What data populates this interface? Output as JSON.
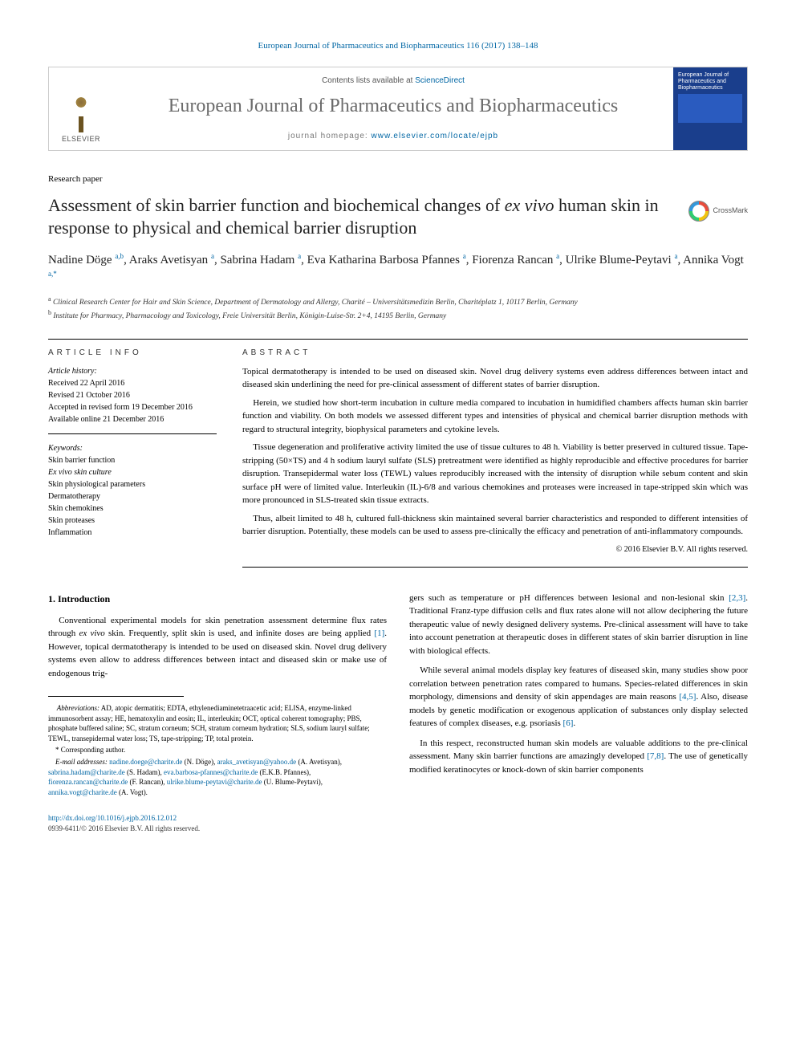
{
  "header": {
    "citation": "European Journal of Pharmaceutics and Biopharmaceutics 116 (2017) 138–148",
    "contents_prefix": "Contents lists available at ",
    "contents_link": "ScienceDirect",
    "journal_name": "European Journal of Pharmaceutics and Biopharmaceutics",
    "homepage_prefix": "journal homepage: ",
    "homepage_url": "www.elsevier.com/locate/ejpb",
    "publisher_word": "ELSEVIER",
    "cover_title": "European Journal of Pharmaceutics and Biopharmaceutics",
    "crossmark": "CrossMark"
  },
  "article": {
    "type": "Research paper",
    "title_pre": "Assessment of skin barrier function and biochemical changes of ",
    "title_ital": "ex vivo",
    "title_post": " human skin in response to physical and chemical barrier disruption",
    "authors_html": "Nadine Döge <sup>a,b</sup>, Araks Avetisyan <sup>a</sup>, Sabrina Hadam <sup>a</sup>, Eva Katharina Barbosa Pfannes <sup>a</sup>, Fiorenza Rancan <sup>a</sup>, Ulrike Blume-Peytavi <sup>a</sup>, Annika Vogt <sup>a,*</sup>",
    "affiliations": {
      "a": "Clinical Research Center for Hair and Skin Science, Department of Dermatology and Allergy, Charité – Universitätsmedizin Berlin, Charitéplatz 1, 10117 Berlin, Germany",
      "b": "Institute for Pharmacy, Pharmacology and Toxicology, Freie Universität Berlin, Königin-Luise-Str. 2+4, 14195 Berlin, Germany"
    }
  },
  "info": {
    "label": "ARTICLE INFO",
    "history_label": "Article history:",
    "history": [
      "Received 22 April 2016",
      "Revised 21 October 2016",
      "Accepted in revised form 19 December 2016",
      "Available online 21 December 2016"
    ],
    "keywords_label": "Keywords:",
    "keywords": [
      "Skin barrier function",
      "Ex vivo skin culture",
      "Skin physiological parameters",
      "Dermatotherapy",
      "Skin chemokines",
      "Skin proteases",
      "Inflammation"
    ]
  },
  "abstract": {
    "label": "ABSTRACT",
    "paragraphs": [
      "Topical dermatotherapy is intended to be used on diseased skin. Novel drug delivery systems even address differences between intact and diseased skin underlining the need for pre-clinical assessment of different states of barrier disruption.",
      "Herein, we studied how short-term incubation in culture media compared to incubation in humidified chambers affects human skin barrier function and viability. On both models we assessed different types and intensities of physical and chemical barrier disruption methods with regard to structural integrity, biophysical parameters and cytokine levels.",
      "Tissue degeneration and proliferative activity limited the use of tissue cultures to 48 h. Viability is better preserved in cultured tissue. Tape-stripping (50×TS) and 4 h sodium lauryl sulfate (SLS) pretreatment were identified as highly reproducible and effective procedures for barrier disruption. Transepidermal water loss (TEWL) values reproducibly increased with the intensity of disruption while sebum content and skin surface pH were of limited value. Interleukin (IL)-6/8 and various chemokines and proteases were increased in tape-stripped skin which was more pronounced in SLS-treated skin tissue extracts.",
      "Thus, albeit limited to 48 h, cultured full-thickness skin maintained several barrier characteristics and responded to different intensities of barrier disruption. Potentially, these models can be used to assess pre-clinically the efficacy and penetration of anti-inflammatory compounds."
    ],
    "copyright": "© 2016 Elsevier B.V. All rights reserved."
  },
  "body": {
    "section_heading": "1. Introduction",
    "paragraphs": [
      "Conventional experimental models for skin penetration assessment determine flux rates through ex vivo skin. Frequently, split skin is used, and infinite doses are being applied [1]. However, topical dermatotherapy is intended to be used on diseased skin. Novel drug delivery systems even allow to address differences between intact and diseased skin or make use of endogenous trig-",
      "gers such as temperature or pH differences between lesional and non-lesional skin [2,3]. Traditional Franz-type diffusion cells and flux rates alone will not allow deciphering the future therapeutic value of newly designed delivery systems. Pre-clinical assessment will have to take into account penetration at therapeutic doses in different states of skin barrier disruption in line with biological effects.",
      "While several animal models display key features of diseased skin, many studies show poor correlation between penetration rates compared to humans. Species-related differences in skin morphology, dimensions and density of skin appendages are main reasons [4,5]. Also, disease models by genetic modification or exogenous application of substances only display selected features of complex diseases, e.g. psoriasis [6].",
      "In this respect, reconstructed human skin models are valuable additions to the pre-clinical assessment. Many skin barrier functions are amazingly developed [7,8]. The use of genetically modified keratinocytes or knock-down of skin barrier components"
    ]
  },
  "footnotes": {
    "abbrev_label": "Abbreviations:",
    "abbrev_text": " AD, atopic dermatitis; EDTA, ethylenediaminetetraacetic acid; ELISA, enzyme-linked immunosorbent assay; HE, hematoxylin and eosin; IL, interleukin; OCT, optical coherent tomography; PBS, phosphate buffered saline; SC, stratum corneum; SCH, stratum corneum hydration; SLS, sodium lauryl sulfate; TEWL, transepidermal water loss; TS, tape-stripping; TP, total protein.",
    "corresponding": "* Corresponding author.",
    "email_label": "E-mail addresses:",
    "emails": [
      {
        "addr": "nadine.doege@charite.de",
        "name": "(N. Döge)"
      },
      {
        "addr": "araks_avetisyan@yahoo.de",
        "name": "(A. Avetisyan)"
      },
      {
        "addr": "sabrina.hadam@charite.de",
        "name": "(S. Hadam)"
      },
      {
        "addr": "eva.barbosa-pfannes@charite.de",
        "name": "(E.K.B. Pfannes)"
      },
      {
        "addr": "fiorenza.rancan@charite.de",
        "name": "(F. Rancan)"
      },
      {
        "addr": "ulrike.blume-peytavi@charite.de",
        "name": "(U. Blume-Peytavi)"
      },
      {
        "addr": "annika.vogt@charite.de",
        "name": "(A. Vogt)"
      }
    ]
  },
  "doi": {
    "url": "http://dx.doi.org/10.1016/j.ejpb.2016.12.012",
    "issn_line": "0939-6411/© 2016 Elsevier B.V. All rights reserved."
  },
  "colors": {
    "link": "#0066a4",
    "journal_gray": "#6b6b6b",
    "cover_bg": "#1a3e8c"
  }
}
